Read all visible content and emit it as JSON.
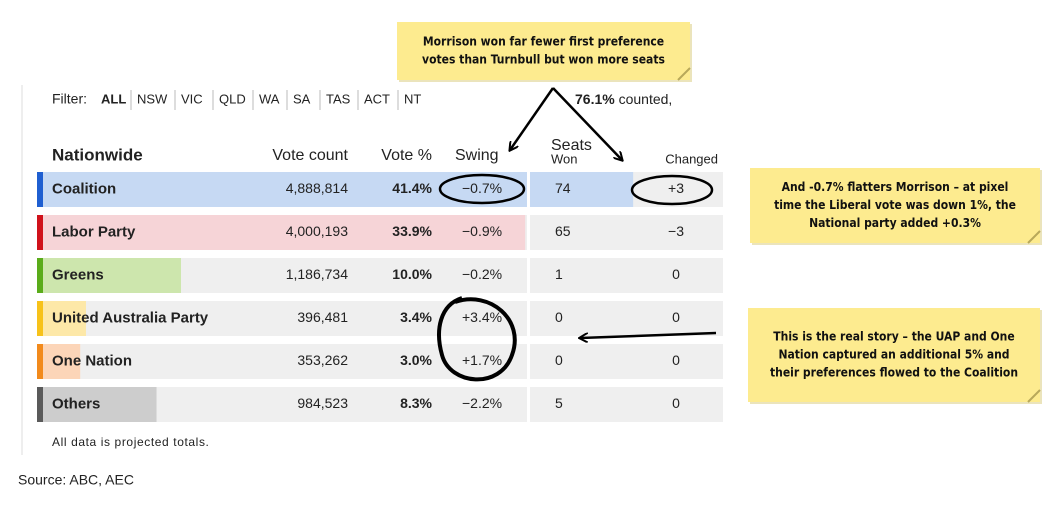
{
  "filter": {
    "label": "Filter:",
    "options": [
      "ALL",
      "NSW",
      "VIC",
      "QLD",
      "WA",
      "SA",
      "TAS",
      "ACT",
      "NT"
    ],
    "counted_pct": "76.1%",
    "counted_text": " counted,"
  },
  "table": {
    "headers": {
      "region": "Nationwide",
      "vote_count": "Vote count",
      "vote_pct": "Vote %",
      "swing": "Swing",
      "seats": "Seats",
      "won": "Won",
      "changed": "Changed"
    },
    "rows": [
      {
        "party": "Coalition",
        "color": "#1f5fd1",
        "bar_color": "#c6d9f3",
        "vote_count": "4,888,814",
        "vote_pct": {
          "value": 41.4,
          "label": "41.4%"
        },
        "swing": "−0.7%",
        "seats_won": 74,
        "seats_changed": "+3"
      },
      {
        "party": "Labor Party",
        "color": "#d0121b",
        "bar_color": "#f6d4d7",
        "vote_count": "4,000,193",
        "vote_pct": {
          "value": 33.9,
          "label": "33.9%"
        },
        "swing": "−0.9%",
        "seats_won": 65,
        "seats_changed": "−3"
      },
      {
        "party": "Greens",
        "color": "#5aac1a",
        "bar_color": "#cde6ad",
        "vote_count": "1,186,734",
        "vote_pct": {
          "value": 10.0,
          "label": "10.0%"
        },
        "swing": "−0.2%",
        "seats_won": 1,
        "seats_changed": "0"
      },
      {
        "party": "United Australia Party",
        "color": "#f7c21a",
        "bar_color": "#fde8a8",
        "vote_count": "396,481",
        "vote_pct": {
          "value": 3.4,
          "label": "3.4%"
        },
        "swing": "+3.4%",
        "seats_won": 0,
        "seats_changed": "0"
      },
      {
        "party": "One Nation",
        "color": "#f28a1c",
        "bar_color": "#fcd5b8",
        "vote_count": "353,262",
        "vote_pct": {
          "value": 3.0,
          "label": "3.0%"
        },
        "swing": "+1.7%",
        "seats_won": 0,
        "seats_changed": "0"
      },
      {
        "party": "Others",
        "color": "#5a5a5a",
        "bar_color": "#cdcdcd",
        "vote_count": "984,523",
        "vote_pct": {
          "value": 8.3,
          "label": "8.3%"
        },
        "swing": "−2.2%",
        "seats_won": 5,
        "seats_changed": "0"
      }
    ],
    "footnote": "All data is projected totals."
  },
  "notes": [
    {
      "lines": [
        "Morrison won far fewer first preference",
        "votes than Turnbull but won more seats"
      ]
    },
    {
      "lines": [
        "And -0.7% flatters Morrison – at pixel",
        "time the Liberal vote was down 1%, the",
        "National party added +0.3%"
      ]
    },
    {
      "lines": [
        "This is the real story – the UAP and One",
        "Nation captured an additional 5% and",
        "their preferences flowed to the Coalition"
      ]
    }
  ],
  "source": "Source: ABC, AEC"
}
